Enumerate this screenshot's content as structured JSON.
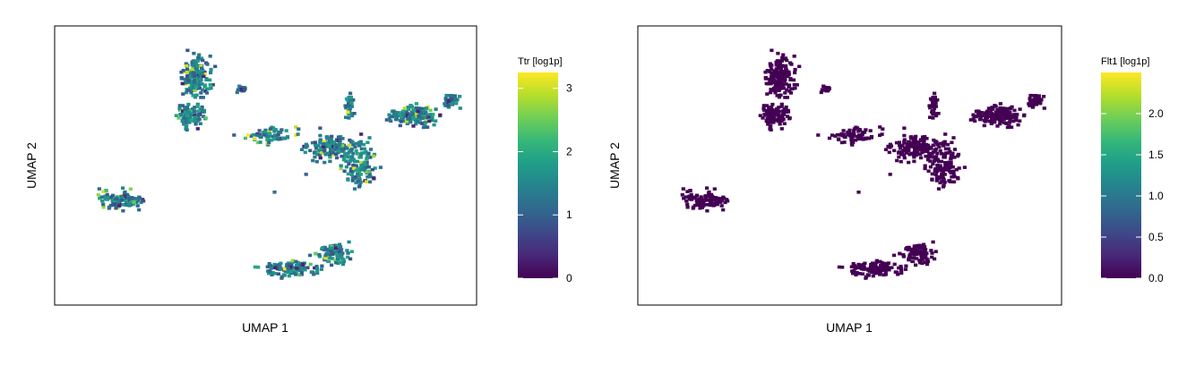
{
  "chart_data": [
    {
      "type": "scatter",
      "subtype": "hexbin-umap",
      "xlabel": "UMAP 1",
      "ylabel": "UMAP 2",
      "axis_ticks": false,
      "grid": false,
      "legend_placement": "right",
      "colorbar": {
        "title": "Ttr [log1p]",
        "colormap": "viridis",
        "min": 0,
        "max": 3.25,
        "ticks": [
          "0",
          "1",
          "2",
          "3"
        ],
        "tick_values": [
          0,
          1,
          2,
          3
        ]
      },
      "point_color_scale": "viridis"
    },
    {
      "type": "scatter",
      "subtype": "hexbin-umap",
      "xlabel": "UMAP 1",
      "ylabel": "UMAP 2",
      "axis_ticks": false,
      "grid": false,
      "legend_placement": "right",
      "colorbar": {
        "title": "Flt1 [log1p]",
        "colormap": "viridis",
        "min": 0,
        "max": 2.5,
        "ticks": [
          "0.0",
          "0.5",
          "1.0",
          "1.5",
          "2.0"
        ],
        "tick_values": [
          0,
          0.5,
          1.0,
          1.5,
          2.0
        ]
      },
      "point_color_scale": "viridis"
    }
  ],
  "colors": {
    "viridis_stops": [
      "#440154",
      "#482878",
      "#3e4989",
      "#31688e",
      "#26828e",
      "#1f9e89",
      "#35b779",
      "#6ece58",
      "#b5de2b",
      "#fde725"
    ],
    "axis": "#000000"
  }
}
